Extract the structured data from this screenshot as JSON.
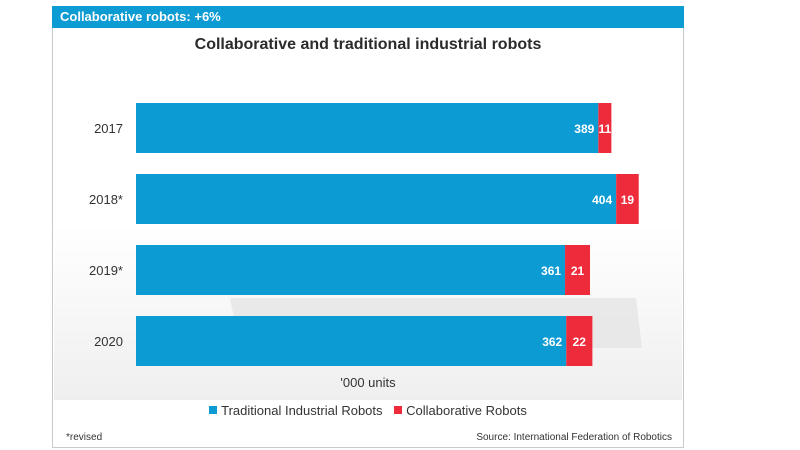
{
  "header": {
    "tag": "Collaborative robots: +6%"
  },
  "footer": {
    "note": "*revised",
    "source": "Source: International Federation of Robotics"
  },
  "colors": {
    "brand": "#0d9bd3",
    "traditional": "#0d9bd3",
    "collaborative": "#ee2b3b"
  },
  "chart_data": {
    "type": "bar",
    "orientation": "horizontal",
    "stacked": true,
    "title": "Collaborative and traditional industrial robots",
    "xlabel": "'000 units",
    "ylabel": "",
    "categories": [
      "2017",
      "2018*",
      "2019*",
      "2020"
    ],
    "series": [
      {
        "name": "Traditional Industrial Robots",
        "values": [
          389,
          404,
          361,
          362
        ]
      },
      {
        "name": "Collaborative Robots",
        "values": [
          11,
          19,
          21,
          22
        ]
      }
    ],
    "xlim": [
      0,
      430
    ],
    "grid": false,
    "legend_position": "bottom"
  }
}
